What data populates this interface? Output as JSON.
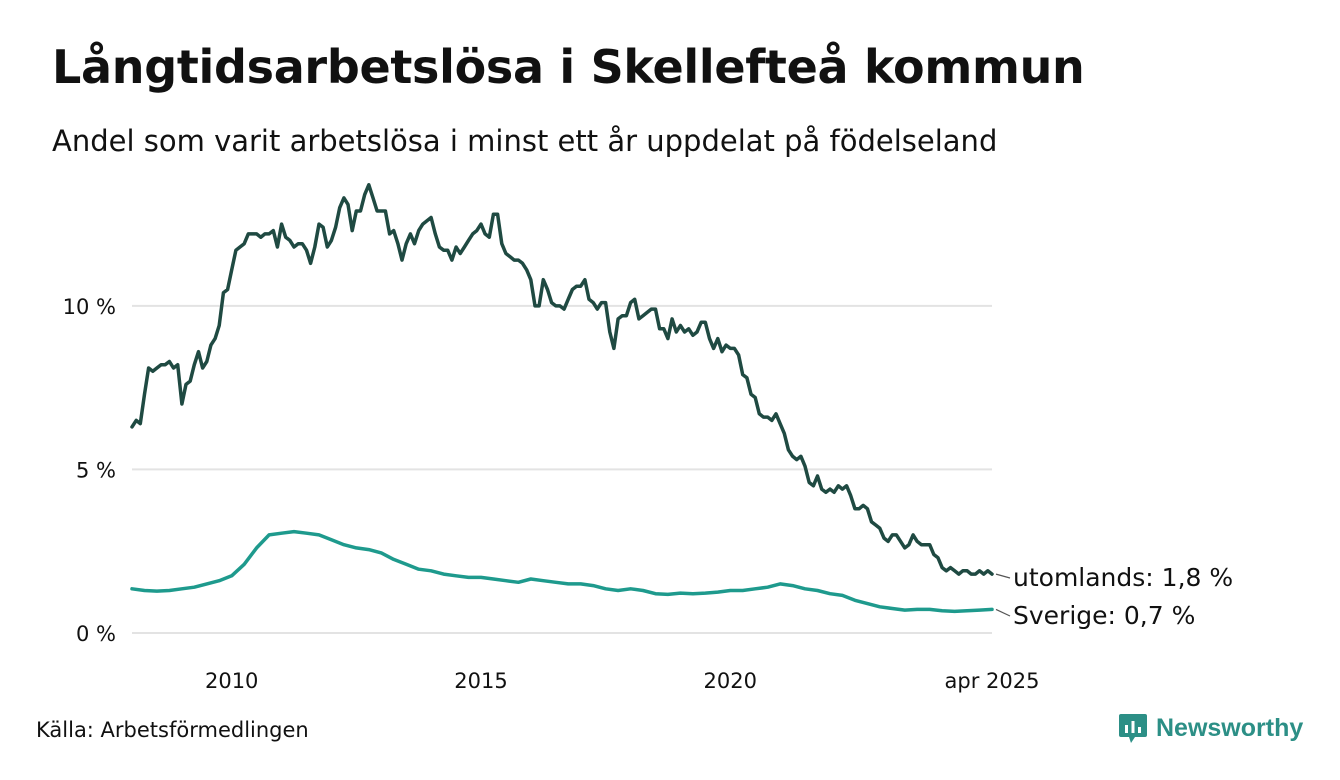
{
  "chart_data": {
    "type": "line",
    "title": "Långtidsarbetslösa i Skellefteå kommun",
    "subtitle": "Andel som varit arbetslösa i minst ett år uppdelat på födelseland",
    "xlabel": "",
    "ylabel": "",
    "x_range": [
      "2008-01",
      "2025-04"
    ],
    "ylim": [
      0,
      14
    ],
    "y_ticks": [
      {
        "value": 0,
        "label": "0 %"
      },
      {
        "value": 5,
        "label": "5 %"
      },
      {
        "value": 10,
        "label": "10 %"
      }
    ],
    "x_ticks": [
      {
        "value": 2010,
        "label": "2010"
      },
      {
        "value": 2015,
        "label": "2015"
      },
      {
        "value": 2020,
        "label": "2020"
      },
      {
        "value": 2025.25,
        "label": "apr 2025"
      }
    ],
    "grid": true,
    "legend": "direct labels at line ends",
    "series": [
      {
        "key": "utomlands",
        "name": "utomlands",
        "end_label": "utomlands: 1,8 %",
        "color": "#1f4a42",
        "points": [
          [
            "2008-01",
            6.3
          ],
          [
            "2008-02",
            6.5
          ],
          [
            "2008-03",
            6.4
          ],
          [
            "2008-04",
            7.3
          ],
          [
            "2008-05",
            8.1
          ],
          [
            "2008-06",
            8.0
          ],
          [
            "2008-07",
            8.1
          ],
          [
            "2008-08",
            8.2
          ],
          [
            "2008-09",
            8.2
          ],
          [
            "2008-10",
            8.3
          ],
          [
            "2008-11",
            8.1
          ],
          [
            "2008-12",
            8.2
          ],
          [
            "2009-01",
            7.0
          ],
          [
            "2009-02",
            7.6
          ],
          [
            "2009-03",
            7.7
          ],
          [
            "2009-04",
            8.2
          ],
          [
            "2009-05",
            8.6
          ],
          [
            "2009-06",
            8.1
          ],
          [
            "2009-07",
            8.3
          ],
          [
            "2009-08",
            8.8
          ],
          [
            "2009-09",
            9.0
          ],
          [
            "2009-10",
            9.4
          ],
          [
            "2009-11",
            10.4
          ],
          [
            "2009-12",
            10.5
          ],
          [
            "2010-01",
            11.1
          ],
          [
            "2010-02",
            11.7
          ],
          [
            "2010-03",
            11.8
          ],
          [
            "2010-04",
            11.9
          ],
          [
            "2010-05",
            12.2
          ],
          [
            "2010-06",
            12.2
          ],
          [
            "2010-07",
            12.2
          ],
          [
            "2010-08",
            12.1
          ],
          [
            "2010-09",
            12.2
          ],
          [
            "2010-10",
            12.2
          ],
          [
            "2010-11",
            12.3
          ],
          [
            "2010-12",
            11.8
          ],
          [
            "2011-01",
            12.5
          ],
          [
            "2011-02",
            12.1
          ],
          [
            "2011-03",
            12.0
          ],
          [
            "2011-04",
            11.8
          ],
          [
            "2011-05",
            11.9
          ],
          [
            "2011-06",
            11.9
          ],
          [
            "2011-07",
            11.7
          ],
          [
            "2011-08",
            11.3
          ],
          [
            "2011-09",
            11.8
          ],
          [
            "2011-10",
            12.5
          ],
          [
            "2011-11",
            12.4
          ],
          [
            "2011-12",
            11.8
          ],
          [
            "2012-01",
            12.0
          ],
          [
            "2012-02",
            12.4
          ],
          [
            "2012-03",
            13.0
          ],
          [
            "2012-04",
            13.3
          ],
          [
            "2012-05",
            13.1
          ],
          [
            "2012-06",
            12.3
          ],
          [
            "2012-07",
            12.9
          ],
          [
            "2012-08",
            12.9
          ],
          [
            "2012-09",
            13.4
          ],
          [
            "2012-10",
            13.7
          ],
          [
            "2012-11",
            13.3
          ],
          [
            "2012-12",
            12.9
          ],
          [
            "2013-01",
            12.9
          ],
          [
            "2013-02",
            12.9
          ],
          [
            "2013-03",
            12.2
          ],
          [
            "2013-04",
            12.3
          ],
          [
            "2013-05",
            11.9
          ],
          [
            "2013-06",
            11.4
          ],
          [
            "2013-07",
            11.9
          ],
          [
            "2013-08",
            12.2
          ],
          [
            "2013-09",
            11.9
          ],
          [
            "2013-10",
            12.3
          ],
          [
            "2013-11",
            12.5
          ],
          [
            "2013-12",
            12.6
          ],
          [
            "2014-01",
            12.7
          ],
          [
            "2014-02",
            12.2
          ],
          [
            "2014-03",
            11.8
          ],
          [
            "2014-04",
            11.7
          ],
          [
            "2014-05",
            11.7
          ],
          [
            "2014-06",
            11.4
          ],
          [
            "2014-07",
            11.8
          ],
          [
            "2014-08",
            11.6
          ],
          [
            "2014-09",
            11.8
          ],
          [
            "2014-10",
            12.0
          ],
          [
            "2014-11",
            12.2
          ],
          [
            "2014-12",
            12.3
          ],
          [
            "2015-01",
            12.5
          ],
          [
            "2015-02",
            12.2
          ],
          [
            "2015-03",
            12.1
          ],
          [
            "2015-04",
            12.8
          ],
          [
            "2015-05",
            12.8
          ],
          [
            "2015-06",
            11.9
          ],
          [
            "2015-07",
            11.6
          ],
          [
            "2015-08",
            11.5
          ],
          [
            "2015-09",
            11.4
          ],
          [
            "2015-10",
            11.4
          ],
          [
            "2015-11",
            11.3
          ],
          [
            "2015-12",
            11.1
          ],
          [
            "2016-01",
            10.8
          ],
          [
            "2016-02",
            10.0
          ],
          [
            "2016-03",
            10.0
          ],
          [
            "2016-04",
            10.8
          ],
          [
            "2016-05",
            10.5
          ],
          [
            "2016-06",
            10.1
          ],
          [
            "2016-07",
            10.0
          ],
          [
            "2016-08",
            10.0
          ],
          [
            "2016-09",
            9.9
          ],
          [
            "2016-10",
            10.2
          ],
          [
            "2016-11",
            10.5
          ],
          [
            "2016-12",
            10.6
          ],
          [
            "2017-01",
            10.6
          ],
          [
            "2017-02",
            10.8
          ],
          [
            "2017-03",
            10.2
          ],
          [
            "2017-04",
            10.1
          ],
          [
            "2017-05",
            9.9
          ],
          [
            "2017-06",
            10.1
          ],
          [
            "2017-07",
            10.1
          ],
          [
            "2017-08",
            9.2
          ],
          [
            "2017-09",
            8.7
          ],
          [
            "2017-10",
            9.6
          ],
          [
            "2017-11",
            9.7
          ],
          [
            "2017-12",
            9.7
          ],
          [
            "2018-01",
            10.1
          ],
          [
            "2018-02",
            10.2
          ],
          [
            "2018-03",
            9.6
          ],
          [
            "2018-04",
            9.7
          ],
          [
            "2018-05",
            9.8
          ],
          [
            "2018-06",
            9.9
          ],
          [
            "2018-07",
            9.9
          ],
          [
            "2018-08",
            9.3
          ],
          [
            "2018-09",
            9.3
          ],
          [
            "2018-10",
            9.0
          ],
          [
            "2018-11",
            9.6
          ],
          [
            "2018-12",
            9.2
          ],
          [
            "2019-01",
            9.4
          ],
          [
            "2019-02",
            9.2
          ],
          [
            "2019-03",
            9.3
          ],
          [
            "2019-04",
            9.1
          ],
          [
            "2019-05",
            9.2
          ],
          [
            "2019-06",
            9.5
          ],
          [
            "2019-07",
            9.5
          ],
          [
            "2019-08",
            9.0
          ],
          [
            "2019-09",
            8.7
          ],
          [
            "2019-10",
            9.0
          ],
          [
            "2019-11",
            8.6
          ],
          [
            "2019-12",
            8.8
          ],
          [
            "2020-01",
            8.7
          ],
          [
            "2020-02",
            8.7
          ],
          [
            "2020-03",
            8.5
          ],
          [
            "2020-04",
            7.9
          ],
          [
            "2020-05",
            7.8
          ],
          [
            "2020-06",
            7.3
          ],
          [
            "2020-07",
            7.2
          ],
          [
            "2020-08",
            6.7
          ],
          [
            "2020-09",
            6.6
          ],
          [
            "2020-10",
            6.6
          ],
          [
            "2020-11",
            6.5
          ],
          [
            "2020-12",
            6.7
          ],
          [
            "2021-01",
            6.4
          ],
          [
            "2021-02",
            6.1
          ],
          [
            "2021-03",
            5.6
          ],
          [
            "2021-04",
            5.4
          ],
          [
            "2021-05",
            5.3
          ],
          [
            "2021-06",
            5.4
          ],
          [
            "2021-07",
            5.1
          ],
          [
            "2021-08",
            4.6
          ],
          [
            "2021-09",
            4.5
          ],
          [
            "2021-10",
            4.8
          ],
          [
            "2021-11",
            4.4
          ],
          [
            "2021-12",
            4.3
          ],
          [
            "2022-01",
            4.4
          ],
          [
            "2022-02",
            4.3
          ],
          [
            "2022-03",
            4.5
          ],
          [
            "2022-04",
            4.4
          ],
          [
            "2022-05",
            4.5
          ],
          [
            "2022-06",
            4.2
          ],
          [
            "2022-07",
            3.8
          ],
          [
            "2022-08",
            3.8
          ],
          [
            "2022-09",
            3.9
          ],
          [
            "2022-10",
            3.8
          ],
          [
            "2022-11",
            3.4
          ],
          [
            "2022-12",
            3.3
          ],
          [
            "2023-01",
            3.2
          ],
          [
            "2023-02",
            2.9
          ],
          [
            "2023-03",
            2.8
          ],
          [
            "2023-04",
            3.0
          ],
          [
            "2023-05",
            3.0
          ],
          [
            "2023-06",
            2.8
          ],
          [
            "2023-07",
            2.6
          ],
          [
            "2023-08",
            2.7
          ],
          [
            "2023-09",
            3.0
          ],
          [
            "2023-10",
            2.8
          ],
          [
            "2023-11",
            2.7
          ],
          [
            "2023-12",
            2.7
          ],
          [
            "2024-01",
            2.7
          ],
          [
            "2024-02",
            2.4
          ],
          [
            "2024-03",
            2.3
          ],
          [
            "2024-04",
            2.0
          ],
          [
            "2024-05",
            1.9
          ],
          [
            "2024-06",
            2.0
          ],
          [
            "2024-07",
            1.9
          ],
          [
            "2024-08",
            1.8
          ],
          [
            "2024-09",
            1.9
          ],
          [
            "2024-10",
            1.9
          ],
          [
            "2024-11",
            1.8
          ],
          [
            "2024-12",
            1.8
          ],
          [
            "2025-01",
            1.9
          ],
          [
            "2025-02",
            1.8
          ],
          [
            "2025-03",
            1.9
          ],
          [
            "2025-04",
            1.8
          ]
        ]
      },
      {
        "key": "sverige",
        "name": "Sverige",
        "end_label": "Sverige: 0,7 %",
        "color": "#1e9a8d",
        "points": [
          [
            "2008-01",
            1.35
          ],
          [
            "2008-04",
            1.3
          ],
          [
            "2008-07",
            1.28
          ],
          [
            "2008-10",
            1.3
          ],
          [
            "2009-01",
            1.35
          ],
          [
            "2009-04",
            1.4
          ],
          [
            "2009-07",
            1.5
          ],
          [
            "2009-10",
            1.6
          ],
          [
            "2010-01",
            1.75
          ],
          [
            "2010-04",
            2.1
          ],
          [
            "2010-07",
            2.6
          ],
          [
            "2010-10",
            3.0
          ],
          [
            "2011-01",
            3.05
          ],
          [
            "2011-04",
            3.1
          ],
          [
            "2011-07",
            3.05
          ],
          [
            "2011-10",
            3.0
          ],
          [
            "2012-01",
            2.85
          ],
          [
            "2012-04",
            2.7
          ],
          [
            "2012-07",
            2.6
          ],
          [
            "2012-10",
            2.55
          ],
          [
            "2013-01",
            2.45
          ],
          [
            "2013-04",
            2.25
          ],
          [
            "2013-07",
            2.1
          ],
          [
            "2013-10",
            1.95
          ],
          [
            "2014-01",
            1.9
          ],
          [
            "2014-04",
            1.8
          ],
          [
            "2014-07",
            1.75
          ],
          [
            "2014-10",
            1.7
          ],
          [
            "2015-01",
            1.7
          ],
          [
            "2015-04",
            1.65
          ],
          [
            "2015-07",
            1.6
          ],
          [
            "2015-10",
            1.55
          ],
          [
            "2016-01",
            1.65
          ],
          [
            "2016-04",
            1.6
          ],
          [
            "2016-07",
            1.55
          ],
          [
            "2016-10",
            1.5
          ],
          [
            "2017-01",
            1.5
          ],
          [
            "2017-04",
            1.45
          ],
          [
            "2017-07",
            1.35
          ],
          [
            "2017-10",
            1.3
          ],
          [
            "2018-01",
            1.35
          ],
          [
            "2018-04",
            1.3
          ],
          [
            "2018-07",
            1.2
          ],
          [
            "2018-10",
            1.18
          ],
          [
            "2019-01",
            1.22
          ],
          [
            "2019-04",
            1.2
          ],
          [
            "2019-07",
            1.22
          ],
          [
            "2019-10",
            1.25
          ],
          [
            "2020-01",
            1.3
          ],
          [
            "2020-04",
            1.3
          ],
          [
            "2020-07",
            1.35
          ],
          [
            "2020-10",
            1.4
          ],
          [
            "2021-01",
            1.5
          ],
          [
            "2021-04",
            1.45
          ],
          [
            "2021-07",
            1.35
          ],
          [
            "2021-10",
            1.3
          ],
          [
            "2022-01",
            1.2
          ],
          [
            "2022-04",
            1.15
          ],
          [
            "2022-07",
            1.0
          ],
          [
            "2022-10",
            0.9
          ],
          [
            "2023-01",
            0.8
          ],
          [
            "2023-04",
            0.75
          ],
          [
            "2023-07",
            0.7
          ],
          [
            "2023-10",
            0.72
          ],
          [
            "2024-01",
            0.72
          ],
          [
            "2024-04",
            0.68
          ],
          [
            "2024-07",
            0.66
          ],
          [
            "2024-10",
            0.68
          ],
          [
            "2025-01",
            0.7
          ],
          [
            "2025-04",
            0.72
          ]
        ]
      }
    ]
  },
  "footer": {
    "source": "Källa: Arbetsförmedlingen",
    "brand": "Newsworthy"
  },
  "colors": {
    "grid": "#e3e3e3",
    "text": "#111111",
    "brand": "#2c8f86"
  }
}
